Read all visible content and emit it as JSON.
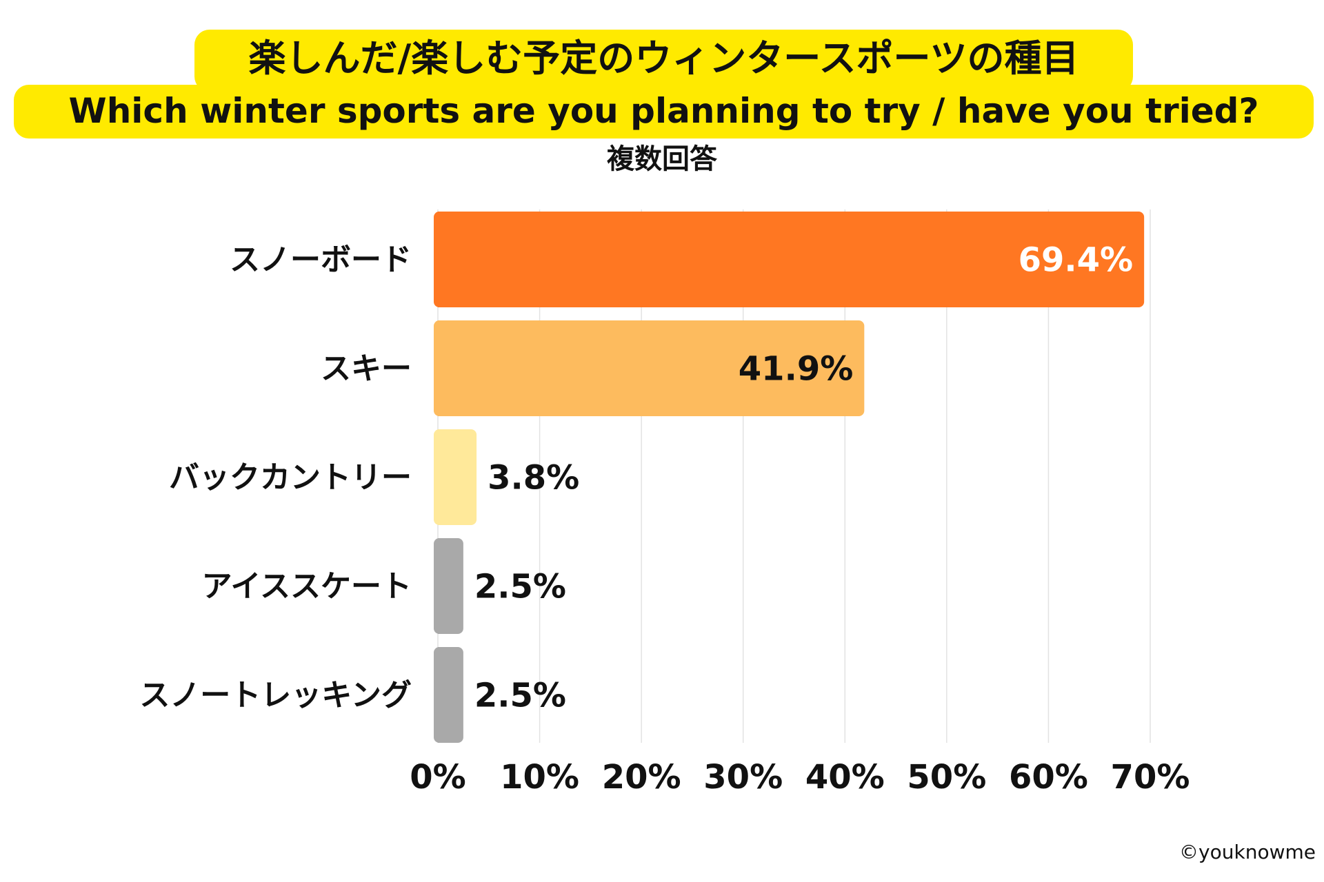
{
  "title_ja": "楽しんだ/楽しむ予定のウィンタースポーツの種目",
  "title_en": "Which winter sports are you planning to try / have you tried?",
  "subtitle": "複数回答",
  "copyright": "©youknowme",
  "colors": {
    "title_bg": "#FFEA00"
  },
  "chart_data": {
    "type": "bar",
    "orientation": "horizontal",
    "title": "楽しんだ/楽しむ予定のウィンタースポーツの種目",
    "categories": [
      "スノーボード",
      "スキー",
      "バックカントリー",
      "アイススケート",
      "スノートレッキング"
    ],
    "values": [
      69.4,
      41.9,
      3.8,
      2.5,
      2.5
    ],
    "value_labels": [
      "69.4%",
      "41.9%",
      "3.8%",
      "2.5%",
      "2.5%"
    ],
    "bar_colors": [
      "#FF7722",
      "#FDBB5E",
      "#FFE99A",
      "#A9A9A9",
      "#A9A9A9"
    ],
    "xlim": [
      0,
      70
    ],
    "xticks": [
      "0%",
      "10%",
      "20%",
      "30%",
      "40%",
      "50%",
      "60%",
      "70%"
    ],
    "grid": "vertical",
    "legend": "none"
  }
}
